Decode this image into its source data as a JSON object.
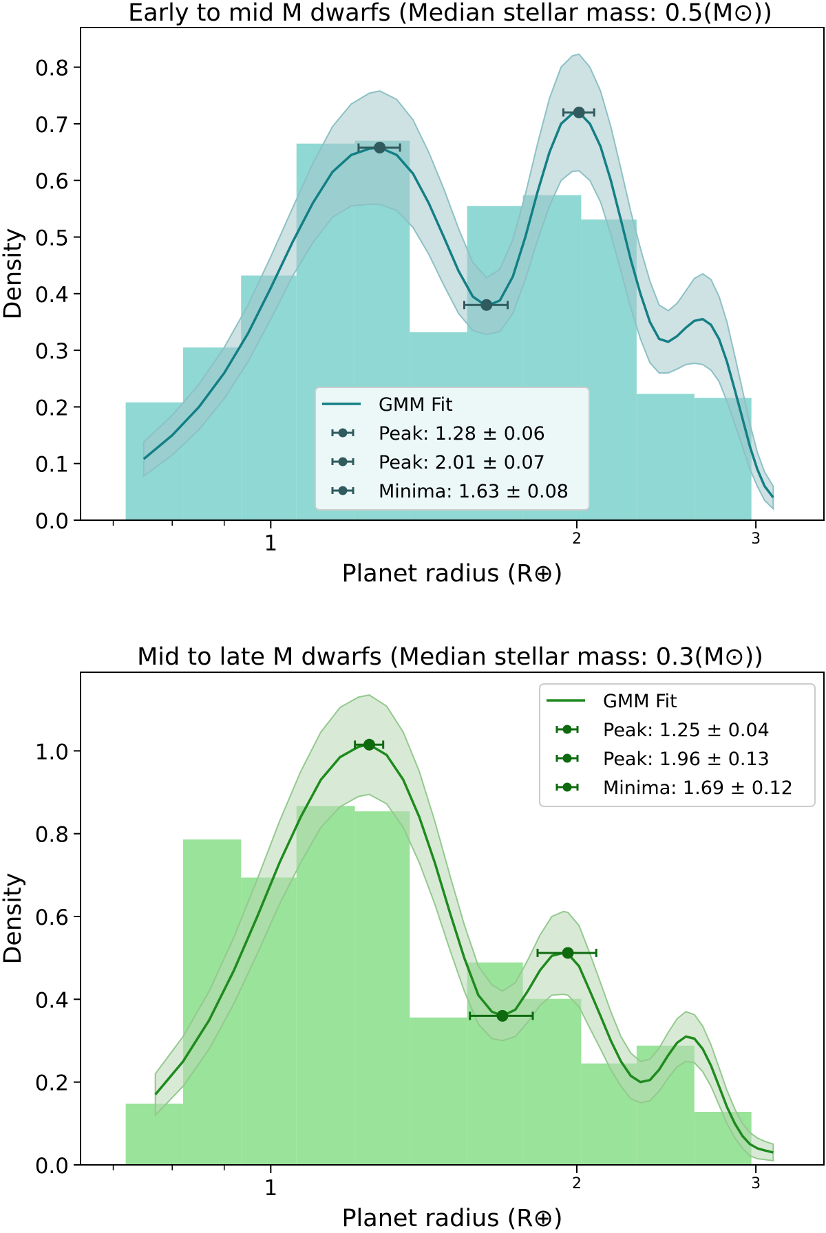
{
  "chart_data": [
    {
      "type": "bar",
      "title": "Early to mid M dwarfs (Median stellar mass: 0.5(M⊙))",
      "xlabel": "Planet radius (R⊕)",
      "ylabel": "Density",
      "xscale": "log",
      "xlim": [
        0.65,
        3.5
      ],
      "ylim": [
        0,
        0.87
      ],
      "xticks": [
        {
          "value": 1,
          "label": "1"
        },
        {
          "value": 2,
          "label": "2"
        },
        {
          "value": 3,
          "label": "3"
        }
      ],
      "xminorticks": [
        0.7,
        0.8,
        0.9
      ],
      "yticks": [
        0.0,
        0.1,
        0.2,
        0.3,
        0.4,
        0.5,
        0.6,
        0.7,
        0.8
      ],
      "colors": {
        "hist": "#8fd8d3",
        "line": "#137f85",
        "band": "#a5c9cc",
        "band_edge": "#8cc1c5",
        "marker": "#2f5a5e"
      },
      "histogram": {
        "edges": [
          0.72,
          0.82,
          0.935,
          1.06,
          1.21,
          1.37,
          1.56,
          1.77,
          2.02,
          2.29,
          2.61,
          2.97,
          3.2
        ],
        "values": [
          0.208,
          0.305,
          0.432,
          0.665,
          0.67,
          0.332,
          0.555,
          0.574,
          0.531,
          0.223,
          0.216,
          0.0
        ]
      },
      "gmm_fit": {
        "x": [
          0.75,
          0.8,
          0.85,
          0.9,
          0.95,
          1.0,
          1.05,
          1.1,
          1.15,
          1.2,
          1.25,
          1.28,
          1.33,
          1.38,
          1.43,
          1.48,
          1.53,
          1.58,
          1.63,
          1.68,
          1.73,
          1.78,
          1.83,
          1.88,
          1.93,
          1.98,
          2.01,
          2.06,
          2.11,
          2.16,
          2.21,
          2.26,
          2.31,
          2.36,
          2.41,
          2.46,
          2.51,
          2.56,
          2.61,
          2.66,
          2.71,
          2.76,
          2.81,
          2.86,
          2.91,
          2.96,
          3.01,
          3.06,
          3.12
        ],
        "y": [
          0.108,
          0.15,
          0.2,
          0.26,
          0.33,
          0.41,
          0.49,
          0.56,
          0.615,
          0.645,
          0.656,
          0.658,
          0.645,
          0.612,
          0.56,
          0.5,
          0.44,
          0.395,
          0.378,
          0.388,
          0.43,
          0.5,
          0.58,
          0.65,
          0.7,
          0.718,
          0.72,
          0.7,
          0.66,
          0.6,
          0.53,
          0.46,
          0.4,
          0.35,
          0.32,
          0.315,
          0.325,
          0.34,
          0.352,
          0.355,
          0.345,
          0.32,
          0.28,
          0.23,
          0.18,
          0.13,
          0.09,
          0.06,
          0.04
        ],
        "band_halfwidth": [
          0.03,
          0.035,
          0.04,
          0.045,
          0.05,
          0.055,
          0.06,
          0.07,
          0.08,
          0.09,
          0.098,
          0.1,
          0.098,
          0.095,
          0.09,
          0.085,
          0.075,
          0.06,
          0.05,
          0.055,
          0.065,
          0.075,
          0.085,
          0.095,
          0.1,
          0.102,
          0.103,
          0.1,
          0.098,
          0.095,
          0.09,
          0.085,
          0.08,
          0.072,
          0.06,
          0.055,
          0.058,
          0.065,
          0.075,
          0.08,
          0.08,
          0.075,
          0.07,
          0.06,
          0.05,
          0.04,
          0.03,
          0.025,
          0.02
        ]
      },
      "points": [
        {
          "x": 1.28,
          "y": 0.658,
          "xerr": 0.06
        },
        {
          "x": 2.01,
          "y": 0.72,
          "xerr": 0.07
        },
        {
          "x": 1.63,
          "y": 0.38,
          "xerr": 0.08
        }
      ],
      "legend": {
        "placement": "lower-center",
        "entries": [
          {
            "kind": "line",
            "label": "GMM Fit"
          },
          {
            "kind": "point",
            "label": "Peak: 1.28 ± 0.06"
          },
          {
            "kind": "point",
            "label": "Peak: 2.01 ± 0.07"
          },
          {
            "kind": "point",
            "label": "Minima: 1.63 ± 0.08"
          }
        ]
      }
    },
    {
      "type": "bar",
      "title": "Mid to late M dwarfs (Median stellar mass: 0.3(M⊙))",
      "xlabel": "Planet radius (R⊕)",
      "ylabel": "Density",
      "xscale": "log",
      "xlim": [
        0.65,
        3.5
      ],
      "ylim": [
        0,
        1.19
      ],
      "xticks": [
        {
          "value": 1,
          "label": "1"
        },
        {
          "value": 2,
          "label": "2"
        },
        {
          "value": 3,
          "label": "3"
        }
      ],
      "xminorticks": [
        0.7,
        0.8,
        0.9
      ],
      "yticks": [
        0.0,
        0.2,
        0.4,
        0.6,
        0.8,
        1.0
      ],
      "colors": {
        "hist": "#9ae39a",
        "line": "#1f8a1f",
        "band": "#b8d8b3",
        "band_edge": "#93c98e",
        "marker": "#0f6a0f"
      },
      "histogram": {
        "edges": [
          0.72,
          0.82,
          0.935,
          1.06,
          1.21,
          1.37,
          1.56,
          1.77,
          2.02,
          2.29,
          2.61,
          2.97,
          3.2
        ],
        "values": [
          0.148,
          0.786,
          0.694,
          0.867,
          0.854,
          0.356,
          0.489,
          0.401,
          0.245,
          0.288,
          0.128,
          0.0
        ]
      },
      "gmm_fit": {
        "x": [
          0.77,
          0.82,
          0.87,
          0.92,
          0.97,
          1.02,
          1.07,
          1.12,
          1.17,
          1.22,
          1.25,
          1.3,
          1.35,
          1.4,
          1.45,
          1.5,
          1.55,
          1.6,
          1.65,
          1.69,
          1.74,
          1.79,
          1.84,
          1.89,
          1.94,
          1.96,
          2.01,
          2.06,
          2.11,
          2.16,
          2.21,
          2.26,
          2.31,
          2.36,
          2.41,
          2.46,
          2.51,
          2.56,
          2.61,
          2.66,
          2.71,
          2.76,
          2.81,
          2.86,
          2.91,
          2.96,
          3.01,
          3.06,
          3.12
        ],
        "y": [
          0.17,
          0.25,
          0.35,
          0.47,
          0.6,
          0.73,
          0.84,
          0.93,
          0.985,
          1.01,
          1.015,
          0.99,
          0.93,
          0.84,
          0.73,
          0.61,
          0.5,
          0.41,
          0.37,
          0.36,
          0.375,
          0.42,
          0.47,
          0.505,
          0.512,
          0.51,
          0.48,
          0.42,
          0.36,
          0.3,
          0.25,
          0.215,
          0.2,
          0.205,
          0.23,
          0.265,
          0.295,
          0.31,
          0.305,
          0.28,
          0.24,
          0.19,
          0.14,
          0.1,
          0.07,
          0.05,
          0.04,
          0.035,
          0.03
        ],
        "band_halfwidth": [
          0.05,
          0.06,
          0.07,
          0.08,
          0.09,
          0.1,
          0.11,
          0.115,
          0.12,
          0.12,
          0.12,
          0.118,
          0.115,
          0.11,
          0.1,
          0.09,
          0.08,
          0.07,
          0.065,
          0.06,
          0.065,
          0.075,
          0.085,
          0.095,
          0.1,
          0.1,
          0.098,
          0.09,
          0.08,
          0.07,
          0.06,
          0.055,
          0.05,
          0.05,
          0.052,
          0.055,
          0.058,
          0.06,
          0.058,
          0.055,
          0.05,
          0.045,
          0.04,
          0.035,
          0.03,
          0.028,
          0.025,
          0.022,
          0.02
        ]
      },
      "points": [
        {
          "x": 1.25,
          "y": 1.015,
          "xerr": 0.04
        },
        {
          "x": 1.96,
          "y": 0.512,
          "xerr": 0.13
        },
        {
          "x": 1.69,
          "y": 0.36,
          "xerr": 0.12
        }
      ],
      "legend": {
        "placement": "upper-right",
        "entries": [
          {
            "kind": "line",
            "label": "GMM Fit"
          },
          {
            "kind": "point",
            "label": "Peak: 1.25 ± 0.04"
          },
          {
            "kind": "point",
            "label": "Peak: 1.96 ± 0.13"
          },
          {
            "kind": "point",
            "label": "Minima: 1.69 ± 0.12"
          }
        ]
      }
    }
  ]
}
